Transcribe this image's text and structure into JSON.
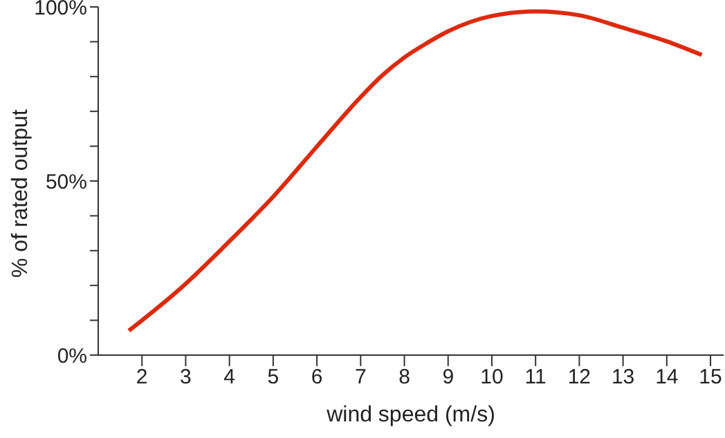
{
  "chart_data": {
    "type": "line",
    "xlabel": "wind speed (m/s)",
    "ylabel": "% of rated output",
    "x": [
      1.7,
      3,
      4,
      5,
      6,
      7,
      7.5,
      8,
      8.5,
      9,
      10,
      11,
      12,
      13,
      14,
      14.8
    ],
    "series": [
      {
        "color": "#dd2a0e",
        "values": [
          7,
          20.5,
          32.7,
          45.5,
          59.9,
          74.1,
          80.4,
          85.5,
          89.5,
          93,
          97.4,
          98.7,
          97.6,
          94,
          90.1,
          86.2
        ]
      }
    ],
    "xlim": [
      1,
      15.3
    ],
    "xticks": [
      2,
      3,
      4,
      5,
      6,
      7,
      8,
      9,
      10,
      11,
      12,
      13,
      14,
      15
    ],
    "ylim": [
      0,
      100
    ],
    "yticks": [
      {
        "value": 0,
        "label": "0%"
      },
      {
        "value": 10,
        "label": null
      },
      {
        "value": 20,
        "label": null
      },
      {
        "value": 30,
        "label": null
      },
      {
        "value": 40,
        "label": null
      },
      {
        "value": 50,
        "label": "50%"
      },
      {
        "value": 60,
        "label": null
      },
      {
        "value": 70,
        "label": null
      },
      {
        "value": 80,
        "label": null
      },
      {
        "value": 90,
        "label": null
      },
      {
        "value": 100,
        "label": "100%"
      }
    ],
    "grid": false,
    "legend": false,
    "marker": "none",
    "line_style": "solid"
  }
}
